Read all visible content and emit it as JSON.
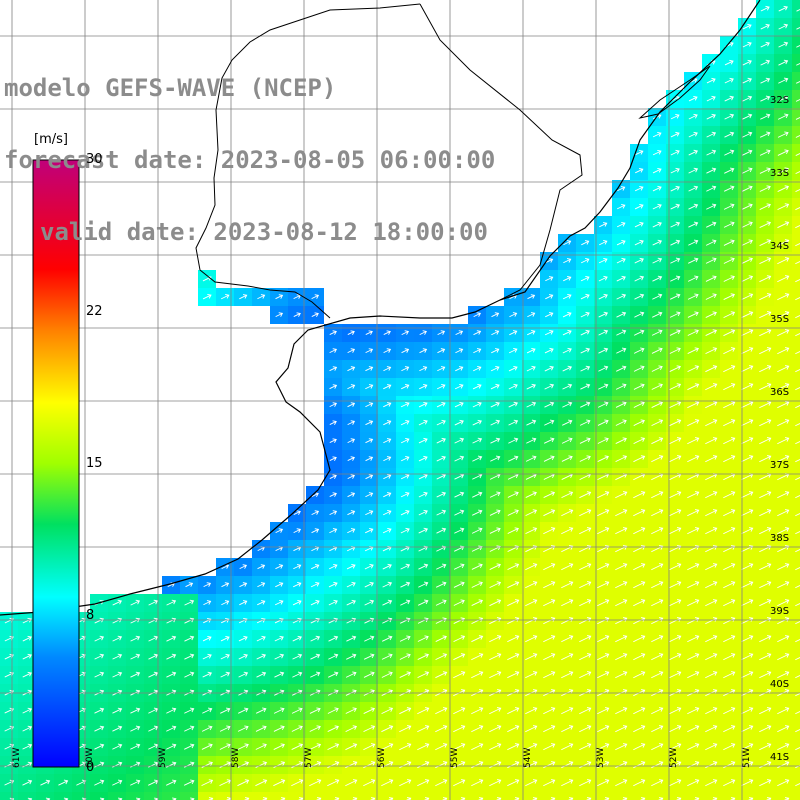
{
  "title": {
    "line1": "modelo GEFS-WAVE (NCEP)",
    "line2": "forecast date: 2023-08-05 06:00:00",
    "line3": "valid date: 2023-08-12 18:00:00"
  },
  "colorbar": {
    "unit": "[m/s]",
    "min": 0,
    "max": 30,
    "ticks": [
      "30",
      "22",
      "15",
      "8",
      "0"
    ],
    "tick_values": [
      30,
      22,
      15,
      8,
      0
    ]
  },
  "lat_labels": [
    "32S",
    "33S",
    "34S",
    "35S",
    "36S",
    "37S",
    "38S",
    "39S",
    "40S",
    "41S"
  ],
  "lon_labels": [
    "61W",
    "60W",
    "59W",
    "58W",
    "57W",
    "56W",
    "55W",
    "54W",
    "53W",
    "52W",
    "51W"
  ],
  "map": {
    "region": "Rio de la Plata and South Atlantic",
    "arrow_direction": "toward north-east",
    "colors": {
      "land": "#ffffff",
      "coast": "#000000",
      "grid": "#808080",
      "arrow": "#ffffff"
    }
  }
}
